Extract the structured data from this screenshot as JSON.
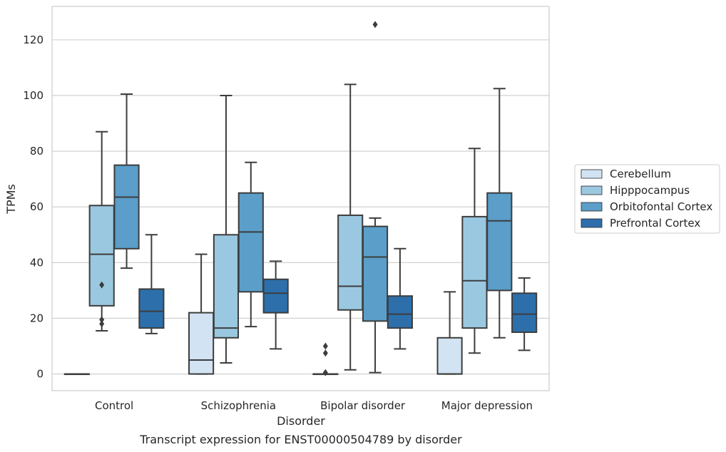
{
  "caption": "Transcript expression for ENST00000504789 by disorder",
  "chart_data": {
    "type": "box",
    "xlabel": "Disorder",
    "ylabel": "TPMs",
    "ylim": [
      -6,
      132
    ],
    "yticks": [
      0,
      20,
      40,
      60,
      80,
      100,
      120
    ],
    "grid": "horizontal",
    "legend_position": "right",
    "categories": [
      "Control",
      "Schizophrenia",
      "Bipolar disorder",
      "Major depression"
    ],
    "series": [
      {
        "name": "Cerebellum",
        "color": "#d2e3f3",
        "boxes": [
          {
            "whislo": 0,
            "q1": 0,
            "med": 0,
            "q3": 0,
            "whishi": 0,
            "fliers": []
          },
          {
            "whislo": 0,
            "q1": 0,
            "med": 5,
            "q3": 22,
            "whishi": 43,
            "fliers": []
          },
          {
            "whislo": 0,
            "q1": 0,
            "med": 0,
            "q3": 0,
            "whishi": 0,
            "fliers": [
              10,
              7.5,
              0.5
            ]
          },
          {
            "whislo": 0,
            "q1": 0,
            "med": 0,
            "q3": 13,
            "whishi": 29.5,
            "fliers": []
          }
        ]
      },
      {
        "name": "Hipppocampus",
        "color": "#9ac8e0",
        "boxes": [
          {
            "whislo": 15.5,
            "q1": 24.5,
            "med": 43,
            "q3": 60.5,
            "whishi": 87,
            "fliers": [
              32,
              19.5,
              18
            ]
          },
          {
            "whislo": 4,
            "q1": 13,
            "med": 16.5,
            "q3": 50,
            "whishi": 100,
            "fliers": []
          },
          {
            "whislo": 1.5,
            "q1": 23,
            "med": 31.5,
            "q3": 57,
            "whishi": 104,
            "fliers": []
          },
          {
            "whislo": 7.5,
            "q1": 16.5,
            "med": 33.5,
            "q3": 56.5,
            "whishi": 81,
            "fliers": []
          }
        ]
      },
      {
        "name": "Orbitofontal Cortex",
        "color": "#5a9ec9",
        "boxes": [
          {
            "whislo": 38,
            "q1": 45,
            "med": 63.5,
            "q3": 75,
            "whishi": 100.5,
            "fliers": []
          },
          {
            "whislo": 17,
            "q1": 29.5,
            "med": 51,
            "q3": 65,
            "whishi": 76,
            "fliers": []
          },
          {
            "whislo": 0.5,
            "q1": 19,
            "med": 42,
            "q3": 53,
            "whishi": 56,
            "fliers": [
              125.5
            ]
          },
          {
            "whislo": 13,
            "q1": 30,
            "med": 55,
            "q3": 65,
            "whishi": 102.5,
            "fliers": []
          }
        ]
      },
      {
        "name": "Prefrontal Cortex",
        "color": "#2c6fab",
        "boxes": [
          {
            "whislo": 14.5,
            "q1": 16.5,
            "med": 22.5,
            "q3": 30.5,
            "whishi": 50,
            "fliers": []
          },
          {
            "whislo": 9,
            "q1": 22,
            "med": 29,
            "q3": 34,
            "whishi": 40.5,
            "fliers": []
          },
          {
            "whislo": 9,
            "q1": 16.5,
            "med": 21.5,
            "q3": 28,
            "whishi": 45,
            "fliers": []
          },
          {
            "whislo": 8.5,
            "q1": 15,
            "med": 21.5,
            "q3": 29,
            "whishi": 34.5,
            "fliers": []
          }
        ]
      }
    ]
  }
}
